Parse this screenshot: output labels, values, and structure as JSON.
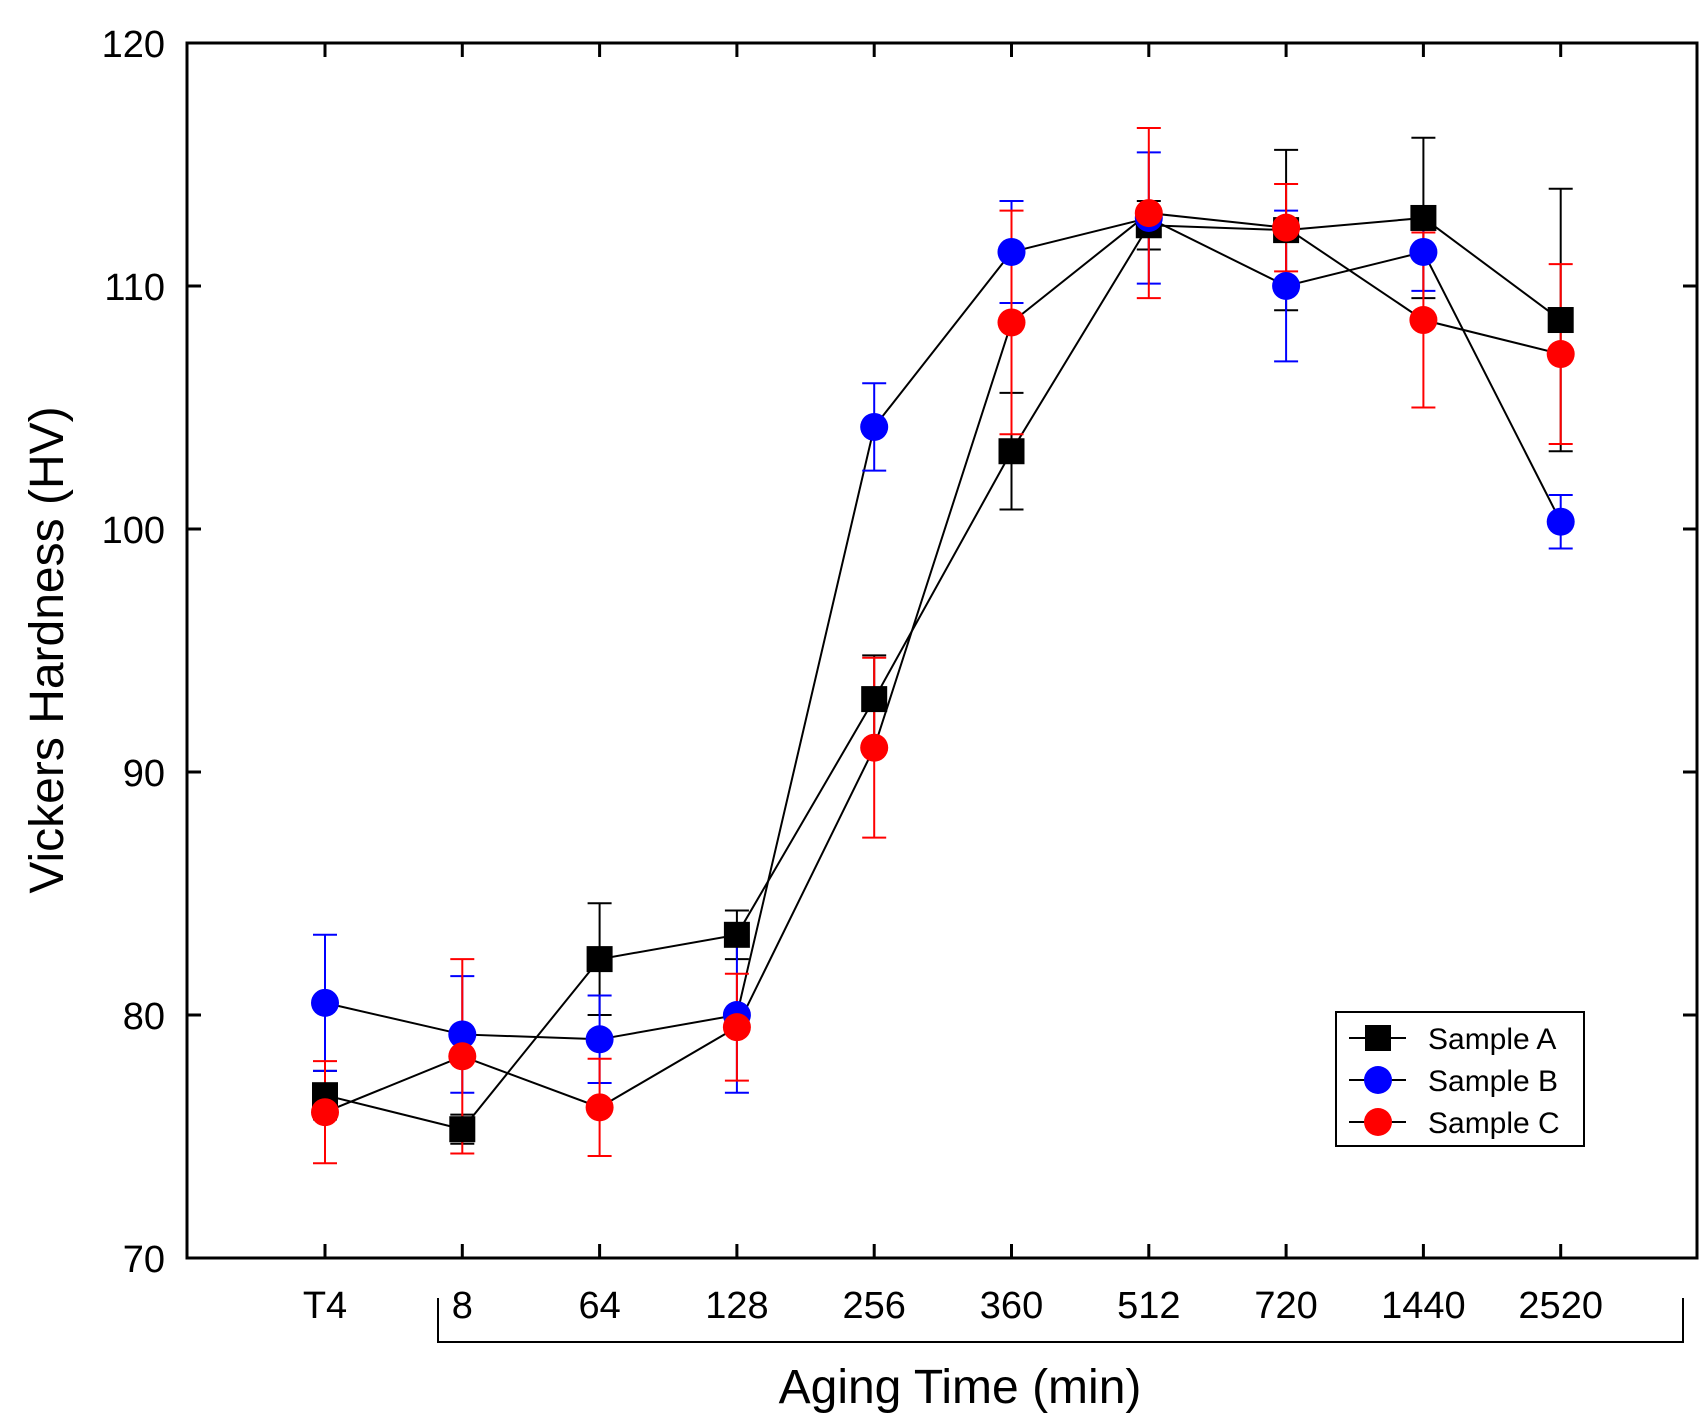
{
  "chart_data": {
    "type": "line",
    "title": "",
    "xlabel": "Aging Time (min)",
    "ylabel": "Vickers Hardness (HV)",
    "categories": [
      "T4",
      "8",
      "64",
      "128",
      "256",
      "360",
      "512",
      "720",
      "1440",
      "2520"
    ],
    "ylim": [
      70,
      120
    ],
    "yticks": [
      70,
      80,
      90,
      100,
      110,
      120
    ],
    "grid": false,
    "legend_position": "bottom-right",
    "series": [
      {
        "name": "Sample A",
        "marker": "square",
        "color": "#000000",
        "values": [
          76.7,
          75.3,
          82.3,
          83.3,
          93.0,
          103.2,
          112.5,
          112.3,
          112.8,
          108.6
        ],
        "errors": [
          1.0,
          0.6,
          2.3,
          1.0,
          1.8,
          2.4,
          1.0,
          3.3,
          3.3,
          5.4
        ]
      },
      {
        "name": "Sample B",
        "marker": "circle",
        "color": "#0000ff",
        "values": [
          80.5,
          79.2,
          79.0,
          80.0,
          104.2,
          111.4,
          112.8,
          110.0,
          111.4,
          100.3
        ],
        "errors": [
          2.8,
          2.4,
          1.8,
          3.2,
          1.8,
          2.1,
          2.7,
          3.1,
          1.6,
          1.1
        ]
      },
      {
        "name": "Sample C",
        "marker": "circle",
        "color": "#ff0000",
        "values": [
          76.0,
          78.3,
          76.2,
          79.5,
          91.0,
          108.5,
          113.0,
          112.4,
          108.6,
          107.2
        ],
        "errors": [
          2.1,
          4.0,
          2.0,
          2.2,
          3.7,
          4.6,
          3.5,
          1.8,
          3.6,
          3.7
        ]
      }
    ]
  },
  "colors": {
    "axis": "#000000",
    "series_a": "#000000",
    "series_b": "#0000ff",
    "series_c": "#ff0000"
  }
}
